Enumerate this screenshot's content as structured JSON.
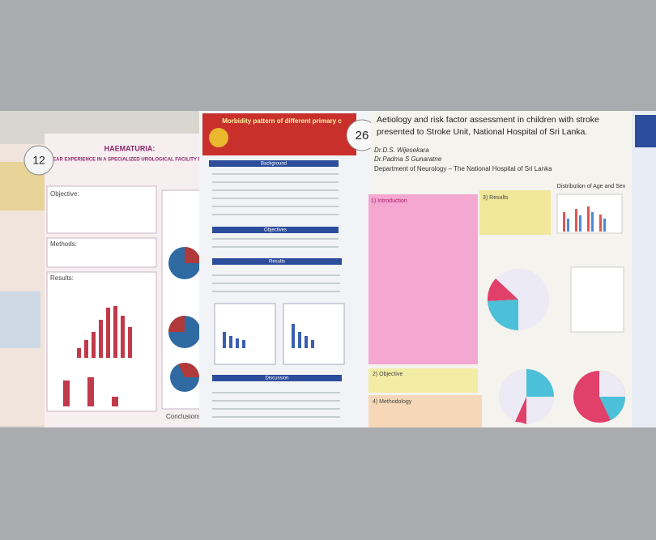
{
  "badges": [
    "12",
    "26"
  ],
  "poster_left": {
    "title": "HAEMATURIA:",
    "subtitle": "A THREE YEAR EXPERIENCE IN A SPECIALIZED UROLOGICAL FACILITY IN SRI LANKA.",
    "sections": [
      "Objective:",
      "Methods:",
      "Results:",
      "Conclusions:"
    ]
  },
  "poster_middle": {
    "title": "Morbidity pattern of different primary c",
    "sections": [
      "Background",
      "Objectives",
      "Results",
      "Discussion"
    ]
  },
  "poster_right": {
    "title": "Aetiology and risk factor assessment in children with stroke",
    "title_line2": "presented to Stroke Unit, National Hospital of Sri Lanka.",
    "authors": [
      "Dr.D.S. Wijesekara",
      "Dr.Padma S Gunaratne"
    ],
    "department": "Department of Neurology – The National Hospital of Sri Lanka",
    "sections": [
      "1) Introduction",
      "3) Results",
      "2) Objective",
      "4) Methodology"
    ],
    "chart_title": "Distribution of Age and Sex"
  }
}
